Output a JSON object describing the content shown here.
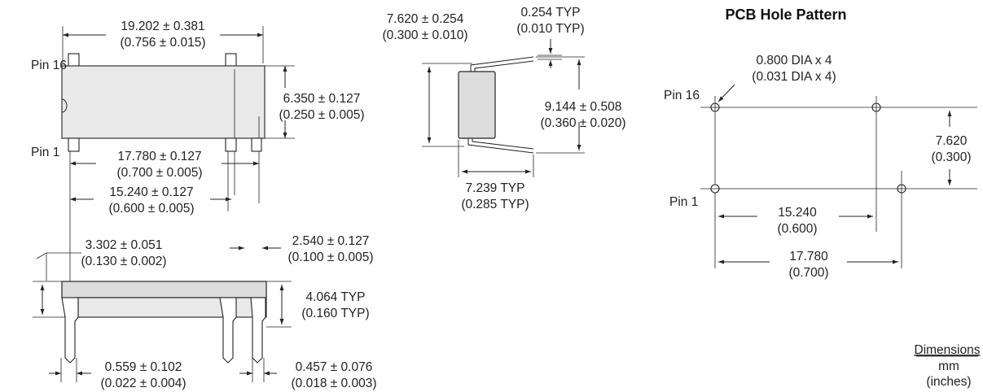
{
  "top_view": {
    "length_mm": "19.202 ± 0.381",
    "length_in": "(0.756 ± 0.015)",
    "height_mm": "6.350 ± 0.127",
    "height_in": "(0.250 ± 0.005)",
    "pin16_label": "Pin 16",
    "pin1_label": "Pin 1",
    "span1_mm": "17.780 ± 0.127",
    "span1_in": "(0.700 ± 0.005)",
    "span2_mm": "15.240 ± 0.127",
    "span2_in": "(0.600 ± 0.005)"
  },
  "side_view": {
    "offset_mm": "3.302 ± 0.051",
    "offset_in": "(0.130 ± 0.002)",
    "pitch_mm": "2.540 ± 0.127",
    "pitch_in": "(0.100 ± 0.005)",
    "height_mm": "4.064 TYP",
    "height_in": "(0.160 TYP)",
    "pin_w_mm": "0.559 ± 0.102",
    "pin_w_in": "(0.022 ± 0.004)",
    "pin_t_mm": "0.457 ± 0.076",
    "pin_t_in": "(0.018 ± 0.003)"
  },
  "end_view": {
    "width_mm": "7.620 ± 0.254",
    "width_in": "(0.300 ± 0.010)",
    "lead_mm": "0.254 TYP",
    "lead_in": "(0.010 TYP)",
    "spread_mm": "9.144 ± 0.508",
    "spread_in": "(0.360 ± 0.020)",
    "row_mm": "7.239 TYP",
    "row_in": "(0.285 TYP)"
  },
  "pcb": {
    "title": "PCB Hole Pattern",
    "hole_mm": "0.800 DIA x 4",
    "hole_in": "(0.031 DIA x 4)",
    "pin16_label": "Pin 16",
    "pin1_label": "Pin 1",
    "row_mm": "7.620",
    "row_in": "(0.300)",
    "span1_mm": "15.240",
    "span1_in": "(0.600)",
    "span2_mm": "17.780",
    "span2_in": "(0.700)"
  },
  "units": {
    "heading": "Dimensions",
    "primary": "mm",
    "secondary": "(inches)"
  }
}
